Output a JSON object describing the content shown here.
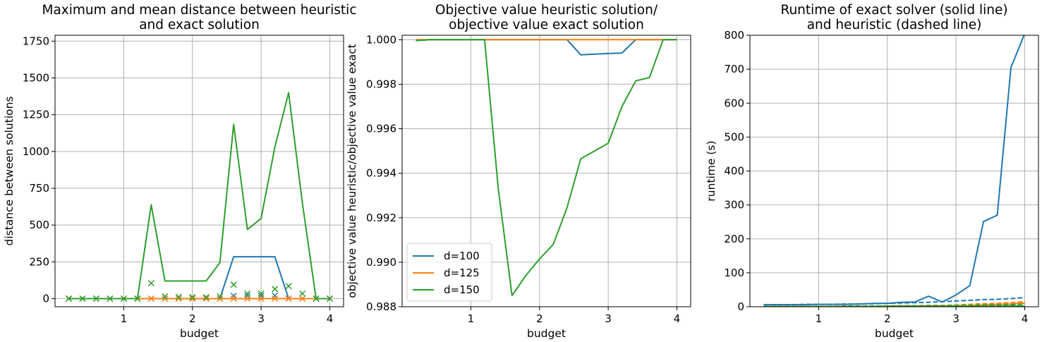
{
  "colors": {
    "d100": "#1f77b4",
    "d125": "#ff7f0e",
    "d150": "#2ca02c",
    "grid": "#b0b0b0"
  },
  "chart_data": [
    {
      "type": "line",
      "title_lines": [
        "Maximum and mean distance between heuristic",
        "and exact solution"
      ],
      "xlabel": "budget",
      "ylabel": "distance between solutions",
      "xlim": [
        0.0,
        4.2
      ],
      "ylim": [
        -55,
        1790
      ],
      "xticks": [
        1,
        2,
        3,
        4
      ],
      "yticks": [
        0,
        250,
        500,
        750,
        1000,
        1250,
        1500,
        1750
      ],
      "grid": true,
      "x": [
        0.2,
        0.4,
        0.6,
        0.8,
        1.0,
        1.2,
        1.4,
        1.6,
        1.8,
        2.0,
        2.2,
        2.4,
        2.6,
        2.8,
        3.0,
        3.2,
        3.4,
        3.6,
        3.8,
        4.0
      ],
      "series": [
        {
          "name": "d=100",
          "color": "#1f77b4",
          "style": "line",
          "values": [
            0,
            0,
            0,
            0,
            0,
            0,
            0,
            0,
            0,
            0,
            0,
            0,
            285,
            285,
            285,
            285,
            0,
            0,
            0,
            0
          ]
        },
        {
          "name": "d=100",
          "color": "#1f77b4",
          "style": "marker",
          "values": [
            0,
            0,
            0,
            0,
            0,
            0,
            0,
            0,
            0,
            0,
            0,
            0,
            20,
            20,
            20,
            20,
            0,
            0,
            0,
            0
          ]
        },
        {
          "name": "d=125",
          "color": "#ff7f0e",
          "style": "line",
          "values": [
            0,
            0,
            0,
            0,
            0,
            0,
            0,
            0,
            0,
            0,
            0,
            0,
            0,
            0,
            0,
            0,
            0,
            0,
            0,
            0
          ]
        },
        {
          "name": "d=125",
          "color": "#ff7f0e",
          "style": "marker",
          "values": [
            0,
            0,
            0,
            0,
            0,
            0,
            0,
            0,
            0,
            0,
            0,
            0,
            0,
            0,
            0,
            0,
            0,
            0,
            0,
            0
          ]
        },
        {
          "name": "d=150",
          "color": "#2ca02c",
          "style": "line",
          "values": [
            0,
            0,
            0,
            0,
            0,
            0,
            638,
            120,
            120,
            120,
            120,
            245,
            1185,
            470,
            545,
            1030,
            1400,
            650,
            0,
            0
          ]
        },
        {
          "name": "d=150",
          "color": "#2ca02c",
          "style": "marker",
          "values": [
            0,
            0,
            0,
            0,
            0,
            0,
            105,
            15,
            12,
            10,
            10,
            15,
            95,
            35,
            35,
            65,
            85,
            35,
            0,
            0
          ]
        }
      ]
    },
    {
      "type": "line",
      "title_lines": [
        "Objective value heuristic solution/",
        "objective value exact solution"
      ],
      "xlabel": "budget",
      "ylabel": "objective value heuristic/objective value exact",
      "xlim": [
        0.0,
        4.2
      ],
      "ylim": [
        0.988,
        1.0002
      ],
      "xticks": [
        1,
        2,
        3,
        4
      ],
      "yticks": [
        0.988,
        0.99,
        0.992,
        0.994,
        0.996,
        0.998,
        1.0
      ],
      "ytick_labels": [
        "0.988",
        "0.990",
        "0.992",
        "0.994",
        "0.996",
        "0.998",
        "1.000"
      ],
      "grid": true,
      "legend": "lower-left",
      "legend_entries": [
        "d=100",
        "d=125",
        "d=150"
      ],
      "x": [
        0.2,
        0.4,
        0.6,
        0.8,
        1.0,
        1.2,
        1.4,
        1.6,
        1.8,
        2.0,
        2.2,
        2.4,
        2.6,
        2.8,
        3.0,
        3.2,
        3.4,
        3.6,
        3.8,
        4.0
      ],
      "series": [
        {
          "name": "d=100",
          "color": "#1f77b4",
          "style": "line",
          "values": [
            0.99996,
            1.0,
            1.0,
            1.0,
            1.0,
            1.0,
            1.0,
            1.0,
            1.0,
            1.0,
            1.0,
            1.0,
            0.99932,
            0.99935,
            0.99938,
            0.9994,
            1.0,
            1.0,
            1.0,
            1.0
          ]
        },
        {
          "name": "d=125",
          "color": "#ff7f0e",
          "style": "line",
          "values": [
            1.0,
            1.0,
            1.0,
            1.0,
            1.0,
            1.0,
            1.0,
            1.0,
            1.0,
            1.0,
            1.0,
            1.0,
            1.0,
            1.0,
            1.0,
            1.0,
            1.0,
            1.0,
            1.0,
            1.0
          ]
        },
        {
          "name": "d=150",
          "color": "#2ca02c",
          "style": "line",
          "values": [
            0.99996,
            1.0,
            1.0,
            1.0,
            1.0,
            1.0,
            0.9933,
            0.9885,
            0.9894,
            0.99015,
            0.9908,
            0.99245,
            0.99465,
            0.995,
            0.99535,
            0.997,
            0.99815,
            0.9983,
            1.0,
            1.0
          ]
        }
      ]
    },
    {
      "type": "line",
      "title_lines": [
        "Runtime of exact solver (solid line)",
        "and heuristic (dashed line)"
      ],
      "xlabel": "budget",
      "ylabel": "runtime (s)",
      "xlim": [
        0.0,
        4.2
      ],
      "ylim": [
        0,
        800
      ],
      "xticks": [
        1,
        2,
        3,
        4
      ],
      "yticks": [
        0,
        100,
        200,
        300,
        400,
        500,
        600,
        700,
        800
      ],
      "grid": true,
      "x": [
        0.2,
        0.4,
        0.6,
        0.8,
        1.0,
        1.2,
        1.4,
        1.6,
        1.8,
        2.0,
        2.2,
        2.4,
        2.6,
        2.8,
        3.0,
        3.2,
        3.4,
        3.6,
        3.8,
        4.0
      ],
      "series": [
        {
          "name": "d=100",
          "color": "#1f77b4",
          "style": "solid",
          "values": [
            6,
            6,
            6,
            6,
            7,
            7,
            7,
            8,
            10,
            10,
            13,
            14,
            31,
            14,
            35,
            62,
            251,
            270,
            705,
            805
          ]
        },
        {
          "name": "d=100",
          "color": "#1f77b4",
          "style": "dashed",
          "values": [
            6,
            6,
            6,
            7,
            7,
            7,
            8,
            8,
            9,
            10,
            11,
            12,
            13,
            15,
            17,
            19,
            21,
            22,
            24,
            27
          ]
        },
        {
          "name": "d=125",
          "color": "#ff7f0e",
          "style": "solid",
          "values": [
            1,
            1,
            1,
            1,
            1,
            1,
            1,
            1,
            1,
            2,
            2,
            2,
            2,
            2,
            3,
            3,
            5,
            7,
            8,
            11
          ]
        },
        {
          "name": "d=125",
          "color": "#ff7f0e",
          "style": "dashed",
          "values": [
            1,
            1,
            1,
            1,
            1,
            1,
            1,
            2,
            2,
            2,
            3,
            3,
            4,
            4,
            5,
            7,
            9,
            10,
            12,
            15
          ]
        },
        {
          "name": "d=150",
          "color": "#2ca02c",
          "style": "solid",
          "values": [
            0,
            0,
            0,
            0,
            0,
            0,
            0,
            0,
            1,
            1,
            1,
            1,
            1,
            1,
            1,
            1,
            1,
            1,
            2,
            2
          ]
        },
        {
          "name": "d=150",
          "color": "#2ca02c",
          "style": "dashed",
          "values": [
            1,
            1,
            1,
            1,
            1,
            1,
            2,
            2,
            2,
            2,
            3,
            3,
            3,
            3,
            4,
            4,
            5,
            5,
            6,
            7
          ]
        }
      ]
    }
  ]
}
